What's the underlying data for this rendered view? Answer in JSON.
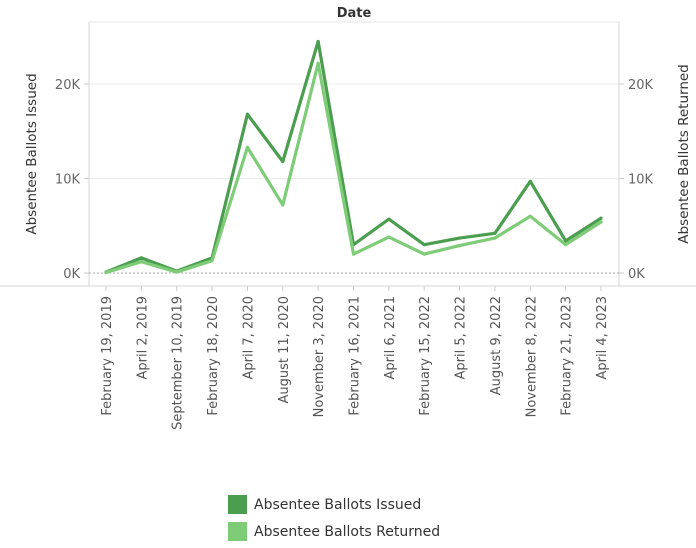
{
  "chart_data": {
    "type": "line",
    "title": "Date",
    "ylabel_left": "Absentee Ballots Issued",
    "ylabel_right": "Absentee Ballots Returned",
    "ylim": [
      0,
      25000
    ],
    "yticks": [
      0,
      10000,
      20000
    ],
    "ytick_labels": [
      "0K",
      "10K",
      "20K"
    ],
    "categories": [
      "February 19, 2019",
      "April 2, 2019",
      "September 10, 2019",
      "February 18, 2020",
      "April 7, 2020",
      "August 11, 2020",
      "November 3, 2020",
      "February 16, 2021",
      "April 6, 2021",
      "February 15, 2022",
      "April 5, 2022",
      "August 9, 2022",
      "November 8, 2022",
      "February 21, 2023",
      "April 4, 2023"
    ],
    "series": [
      {
        "name": "Absentee Ballots Issued",
        "color": "#4b9e4f",
        "values": [
          100,
          1600,
          200,
          1600,
          16800,
          11800,
          24500,
          3000,
          5700,
          3000,
          3700,
          4200,
          9700,
          3400,
          5800
        ]
      },
      {
        "name": "Absentee Ballots Returned",
        "color": "#7fcc78",
        "values": [
          50,
          1200,
          100,
          1300,
          13300,
          7200,
          22200,
          2000,
          3800,
          2000,
          2900,
          3700,
          6000,
          3000,
          5400
        ]
      }
    ],
    "grid": true,
    "legend_position": "bottom"
  }
}
